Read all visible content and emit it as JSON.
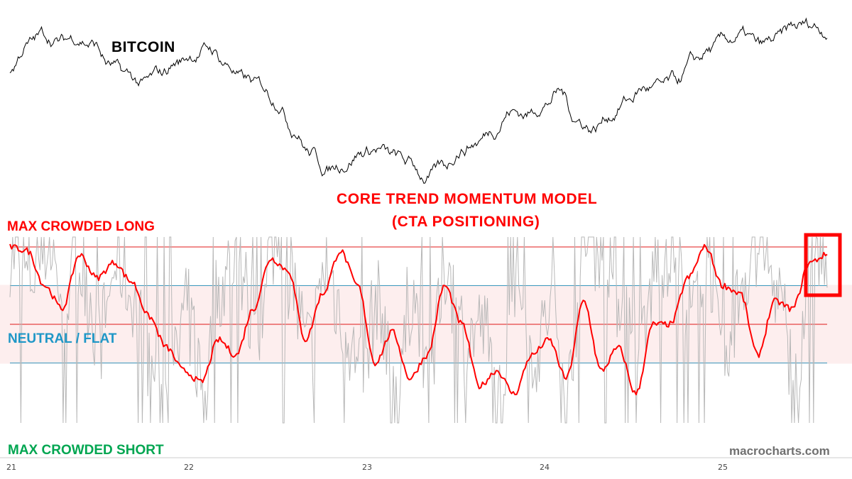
{
  "chart_data": [
    {
      "type": "line",
      "title": "BITCOIN",
      "xlabel": "",
      "ylabel": "",
      "x_tick_labels": [
        "21",
        "22",
        "23",
        "24",
        "25"
      ],
      "grid": false,
      "series": [
        {
          "color": "#000000",
          "values": [
            70,
            84,
            90,
            86,
            89,
            85,
            72,
            66,
            61,
            67,
            74,
            79,
            82,
            73,
            64,
            60,
            53,
            37,
            22,
            12,
            16,
            22,
            24,
            19,
            15,
            7,
            13,
            24,
            28,
            36,
            46,
            44,
            50,
            57,
            41,
            36,
            44,
            52,
            59,
            59,
            63,
            74,
            81,
            87,
            89,
            83,
            87,
            94,
            96,
            93
          ]
        }
      ]
    },
    {
      "type": "line",
      "title": "CORE TREND MOMENTUM MODEL",
      "subtitle": "(CTA POSITIONING)",
      "ylim": [
        -100,
        100
      ],
      "x_tick_labels": [
        "21",
        "22",
        "23",
        "24",
        "25"
      ],
      "reference_lines": [
        {
          "label": "MAX CROWDED LONG",
          "value": 100,
          "color": "#e01818"
        },
        {
          "value": 50,
          "color": "#3a9bbf"
        },
        {
          "label": "NEUTRAL / FLAT",
          "value": 0,
          "color": "#e01818"
        },
        {
          "value": -50,
          "color": "#3a9bbf"
        },
        {
          "label": "MAX CROWDED SHORT",
          "value": -100
        }
      ],
      "shaded_band": {
        "from": -50,
        "to": 50,
        "color": "#fdeeee"
      },
      "series": [
        {
          "color": "#ff0000",
          "values": [
            100,
            95,
            50,
            20,
            90,
            60,
            80,
            55,
            10,
            -30,
            -60,
            -75,
            -20,
            -40,
            20,
            85,
            70,
            -20,
            40,
            95,
            50,
            -50,
            -10,
            -70,
            -40,
            50,
            0,
            -80,
            -60,
            -90,
            -40,
            -20,
            -70,
            30,
            -60,
            -30,
            -90,
            0,
            0,
            60,
            100,
            50,
            40,
            -40,
            30,
            20,
            80,
            90
          ]
        },
        {
          "color": "#b8b8b8",
          "values": [
            90,
            60,
            100,
            40,
            70,
            -20,
            80,
            30,
            -60,
            -90,
            20,
            -80,
            50,
            90,
            -40,
            100,
            60,
            -30,
            70,
            10,
            -70,
            30,
            -90,
            40,
            -60,
            80,
            -20,
            0,
            -95,
            60,
            -40,
            20,
            -80,
            90,
            100,
            30,
            -50,
            70,
            100,
            20,
            80,
            -70,
            60,
            100,
            40,
            -80,
            100,
            70
          ]
        }
      ]
    }
  ],
  "labels": {
    "bitcoin": "BITCOIN",
    "title_line1": "CORE TREND MOMENTUM MODEL",
    "title_line2": "(CTA POSITIONING)",
    "max_long": "MAX CROWDED LONG",
    "neutral": "NEUTRAL / FLAT",
    "max_short": "MAX CROWDED SHORT",
    "watermark": "macrocharts.com"
  },
  "x_ticks": [
    "21",
    "22",
    "23",
    "24",
    "25"
  ],
  "colors": {
    "price": "#000000",
    "model": "#ff0000",
    "raw_signal": "#b8b8b8",
    "extreme_line": "#e01818",
    "band_line": "#3a9bbf",
    "band_fill": "#fdeeee",
    "highlight_box": "#ff0000"
  }
}
